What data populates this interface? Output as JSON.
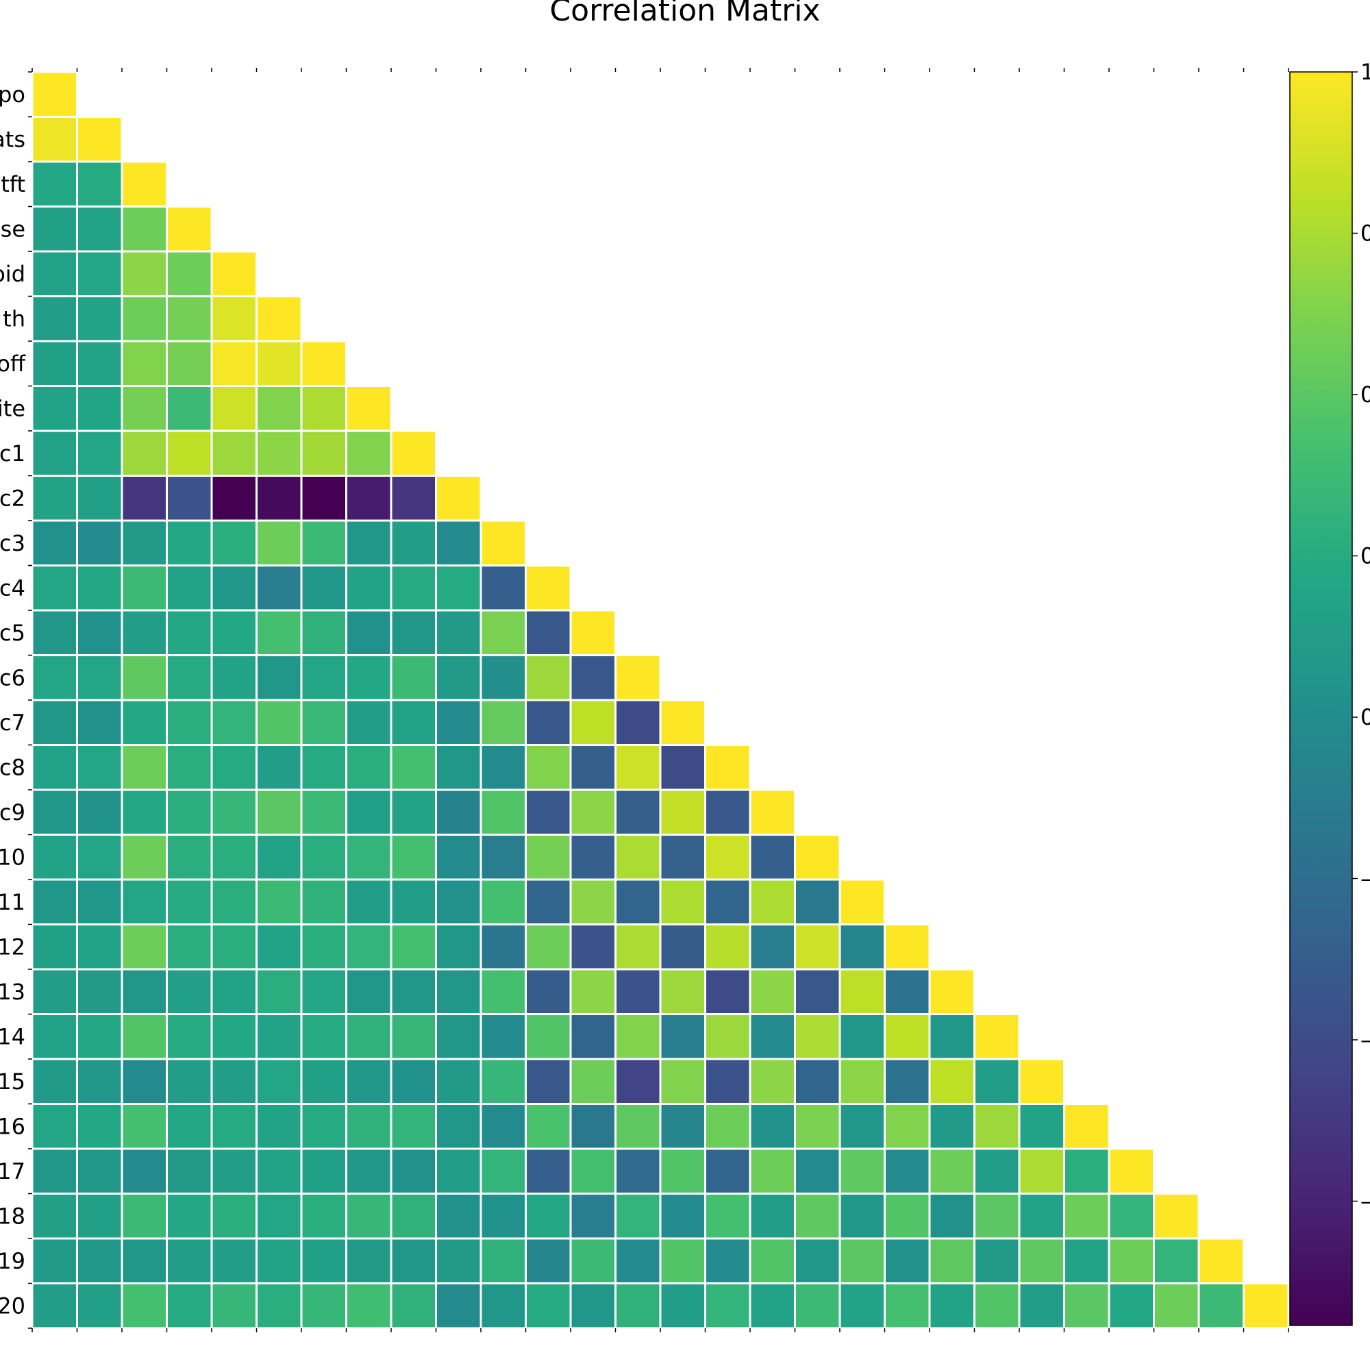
{
  "chart_data": {
    "type": "heatmap",
    "title": "Correlation Matrix",
    "layout": "lower-triangle",
    "colormap": "viridis",
    "colorbar": {
      "min": -1,
      "max": 1,
      "visible_tick_labels": [
        "1",
        "0",
        "0",
        "0",
        "0",
        "–",
        "–",
        "–"
      ]
    },
    "row_labels": [
      "po",
      "ats",
      "tft",
      "se",
      "oid",
      "th",
      "off",
      "ite",
      "c1",
      "c2",
      "c3",
      "c4",
      "c5",
      "c6",
      "c7",
      "c8",
      "c9",
      "10",
      "11",
      "12",
      "13",
      "14",
      "15",
      "16",
      "17",
      "18",
      "19",
      "20"
    ],
    "matrix": [
      [
        1.0
      ],
      [
        0.95,
        1.0
      ],
      [
        0.2,
        0.22,
        1.0
      ],
      [
        0.12,
        0.15,
        0.55,
        1.0
      ],
      [
        0.15,
        0.18,
        0.65,
        0.55,
        1.0
      ],
      [
        0.1,
        0.15,
        0.55,
        0.58,
        0.9,
        1.0
      ],
      [
        0.13,
        0.15,
        0.62,
        0.58,
        0.98,
        0.92,
        1.0
      ],
      [
        0.15,
        0.17,
        0.58,
        0.35,
        0.85,
        0.62,
        0.75,
        1.0
      ],
      [
        0.14,
        0.18,
        0.7,
        0.8,
        0.7,
        0.65,
        0.72,
        0.62,
        1.0
      ],
      [
        0.16,
        0.12,
        -0.7,
        -0.5,
        -1.0,
        -0.95,
        -1.0,
        -0.85,
        -0.7,
        1.0
      ],
      [
        0.0,
        -0.05,
        0.08,
        0.2,
        0.25,
        0.55,
        0.35,
        0.05,
        0.1,
        -0.05,
        1.0
      ],
      [
        0.18,
        0.2,
        0.35,
        0.15,
        0.05,
        -0.15,
        0.05,
        0.15,
        0.22,
        0.22,
        -0.4,
        1.0
      ],
      [
        0.05,
        0.0,
        0.1,
        0.2,
        0.2,
        0.4,
        0.28,
        0.0,
        0.05,
        0.08,
        0.6,
        -0.45,
        1.0
      ],
      [
        0.18,
        0.18,
        0.5,
        0.22,
        0.15,
        0.05,
        0.18,
        0.2,
        0.35,
        0.08,
        -0.02,
        0.7,
        -0.45,
        1.0
      ],
      [
        0.05,
        0.0,
        0.2,
        0.25,
        0.3,
        0.45,
        0.33,
        0.1,
        0.15,
        -0.05,
        0.52,
        -0.45,
        0.8,
        -0.55,
        1.0
      ],
      [
        0.15,
        0.18,
        0.55,
        0.25,
        0.22,
        0.1,
        0.22,
        0.25,
        0.4,
        0.05,
        -0.05,
        0.62,
        -0.4,
        0.85,
        -0.55,
        1.0
      ],
      [
        0.05,
        0.02,
        0.2,
        0.25,
        0.32,
        0.48,
        0.35,
        0.12,
        0.15,
        -0.12,
        0.45,
        -0.45,
        0.65,
        -0.4,
        0.82,
        -0.45,
        1.0
      ],
      [
        0.15,
        0.18,
        0.55,
        0.25,
        0.25,
        0.15,
        0.25,
        0.3,
        0.4,
        -0.05,
        -0.15,
        0.58,
        -0.4,
        0.75,
        -0.38,
        0.85,
        -0.4,
        1.0
      ],
      [
        0.05,
        0.05,
        0.18,
        0.22,
        0.25,
        0.35,
        0.28,
        0.1,
        0.1,
        0.0,
        0.4,
        -0.35,
        0.65,
        -0.35,
        0.75,
        -0.35,
        0.75,
        -0.2,
        1.0
      ],
      [
        0.12,
        0.15,
        0.55,
        0.25,
        0.25,
        0.15,
        0.25,
        0.3,
        0.4,
        0.05,
        -0.22,
        0.55,
        -0.5,
        0.75,
        -0.42,
        0.78,
        -0.15,
        0.85,
        -0.1,
        1.0
      ],
      [
        0.1,
        0.08,
        0.05,
        0.12,
        0.15,
        0.25,
        0.18,
        0.05,
        0.05,
        0.05,
        0.4,
        -0.42,
        0.65,
        -0.5,
        0.7,
        -0.55,
        0.65,
        -0.45,
        0.8,
        -0.25,
        1.0
      ],
      [
        0.15,
        0.2,
        0.45,
        0.22,
        0.2,
        0.15,
        0.22,
        0.28,
        0.32,
        0.05,
        -0.05,
        0.45,
        -0.35,
        0.62,
        -0.15,
        0.7,
        -0.05,
        0.75,
        0.05,
        0.8,
        0.05,
        1.0
      ],
      [
        0.08,
        0.05,
        -0.05,
        0.1,
        0.1,
        0.18,
        0.12,
        0.05,
        0.0,
        0.08,
        0.32,
        -0.45,
        0.55,
        -0.6,
        0.62,
        -0.5,
        0.65,
        -0.35,
        0.65,
        -0.25,
        0.8,
        0.1,
        1.0
      ],
      [
        0.18,
        0.2,
        0.4,
        0.2,
        0.22,
        0.15,
        0.22,
        0.28,
        0.3,
        0.05,
        -0.05,
        0.42,
        -0.2,
        0.5,
        -0.1,
        0.55,
        0.0,
        0.6,
        0.05,
        0.62,
        0.08,
        0.7,
        0.15,
        1.0
      ],
      [
        0.05,
        0.05,
        -0.05,
        0.08,
        0.1,
        0.15,
        0.12,
        0.05,
        0.0,
        0.1,
        0.3,
        -0.4,
        0.4,
        -0.3,
        0.45,
        -0.35,
        0.55,
        -0.05,
        0.5,
        -0.05,
        0.55,
        0.1,
        0.75,
        0.25,
        1.0
      ],
      [
        0.12,
        0.12,
        0.35,
        0.2,
        0.25,
        0.18,
        0.25,
        0.32,
        0.28,
        0.0,
        0.0,
        0.2,
        -0.15,
        0.3,
        -0.05,
        0.4,
        0.1,
        0.5,
        0.05,
        0.45,
        0.0,
        0.48,
        0.15,
        0.55,
        0.3,
        1.0
      ],
      [
        0.08,
        0.05,
        0.05,
        0.1,
        0.1,
        0.15,
        0.12,
        0.08,
        0.05,
        0.08,
        0.28,
        -0.1,
        0.35,
        -0.05,
        0.45,
        -0.05,
        0.45,
        0.05,
        0.48,
        0.0,
        0.5,
        0.08,
        0.5,
        0.15,
        0.55,
        0.3,
        1.0
      ],
      [
        0.1,
        0.12,
        0.4,
        0.22,
        0.32,
        0.25,
        0.32,
        0.38,
        0.28,
        -0.05,
        0.05,
        0.22,
        0.05,
        0.28,
        0.1,
        0.3,
        0.15,
        0.35,
        0.15,
        0.4,
        0.15,
        0.45,
        0.1,
        0.48,
        0.2,
        0.55,
        0.35,
        1.0
      ]
    ]
  }
}
